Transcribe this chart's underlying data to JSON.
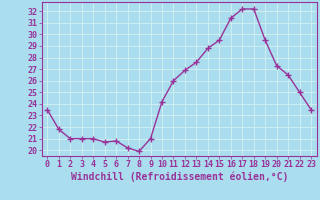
{
  "x": [
    0,
    1,
    2,
    3,
    4,
    5,
    6,
    7,
    8,
    9,
    10,
    11,
    12,
    13,
    14,
    15,
    16,
    17,
    18,
    19,
    20,
    21,
    22,
    23
  ],
  "y": [
    23.5,
    21.8,
    21.0,
    21.0,
    21.0,
    20.7,
    20.8,
    20.2,
    19.9,
    21.0,
    24.2,
    26.0,
    26.9,
    27.6,
    28.8,
    29.5,
    31.4,
    32.2,
    32.2,
    29.5,
    27.3,
    26.5,
    25.0,
    23.5
  ],
  "color": "#993399",
  "bg_color": "#aaddee",
  "grid_color": "#cceeee",
  "xlabel": "Windchill (Refroidissement éolien,°C)",
  "ylim": [
    19.5,
    32.8
  ],
  "xlim": [
    -0.5,
    23.5
  ],
  "yticks": [
    20,
    21,
    22,
    23,
    24,
    25,
    26,
    27,
    28,
    29,
    30,
    31,
    32
  ],
  "xticks": [
    0,
    1,
    2,
    3,
    4,
    5,
    6,
    7,
    8,
    9,
    10,
    11,
    12,
    13,
    14,
    15,
    16,
    17,
    18,
    19,
    20,
    21,
    22,
    23
  ],
  "marker": "+",
  "markersize": 4,
  "linewidth": 1.0,
  "xlabel_fontsize": 7,
  "tick_fontsize": 6
}
